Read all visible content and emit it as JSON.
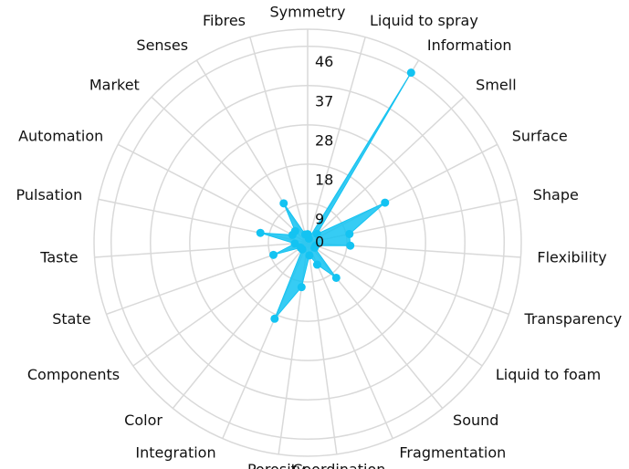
{
  "chart_data": {
    "type": "radar",
    "categories": [
      "Symmetry",
      "Liquid to spray",
      "Information",
      "Smell",
      "Surface",
      "Shape",
      "Flexibility",
      "Transparency",
      "Liquid to foam",
      "Sound",
      "Fragmentation",
      "Coordination",
      "Porosity",
      "Integration",
      "Color",
      "Components",
      "State",
      "Taste",
      "Pulsation",
      "Automation",
      "Market",
      "Senses",
      "Fibres"
    ],
    "series": [
      {
        "color": "#13c3f2",
        "values": [
          2,
          1,
          46.6,
          3,
          20.4,
          10,
          10,
          2,
          2,
          10.6,
          5.6,
          3,
          10.5,
          19.4,
          2,
          2,
          8.5,
          3,
          11.3,
          4,
          4,
          10.8,
          2
        ]
      }
    ],
    "rlim": [
      0,
      50
    ],
    "rticks": [
      {
        "value": 0,
        "label": "0"
      },
      {
        "value": 9.2,
        "label": "9"
      },
      {
        "value": 18.4,
        "label": "18"
      },
      {
        "value": 27.6,
        "label": "28"
      },
      {
        "value": 36.8,
        "label": "37"
      },
      {
        "value": 46,
        "label": "46"
      }
    ],
    "grid": true
  }
}
